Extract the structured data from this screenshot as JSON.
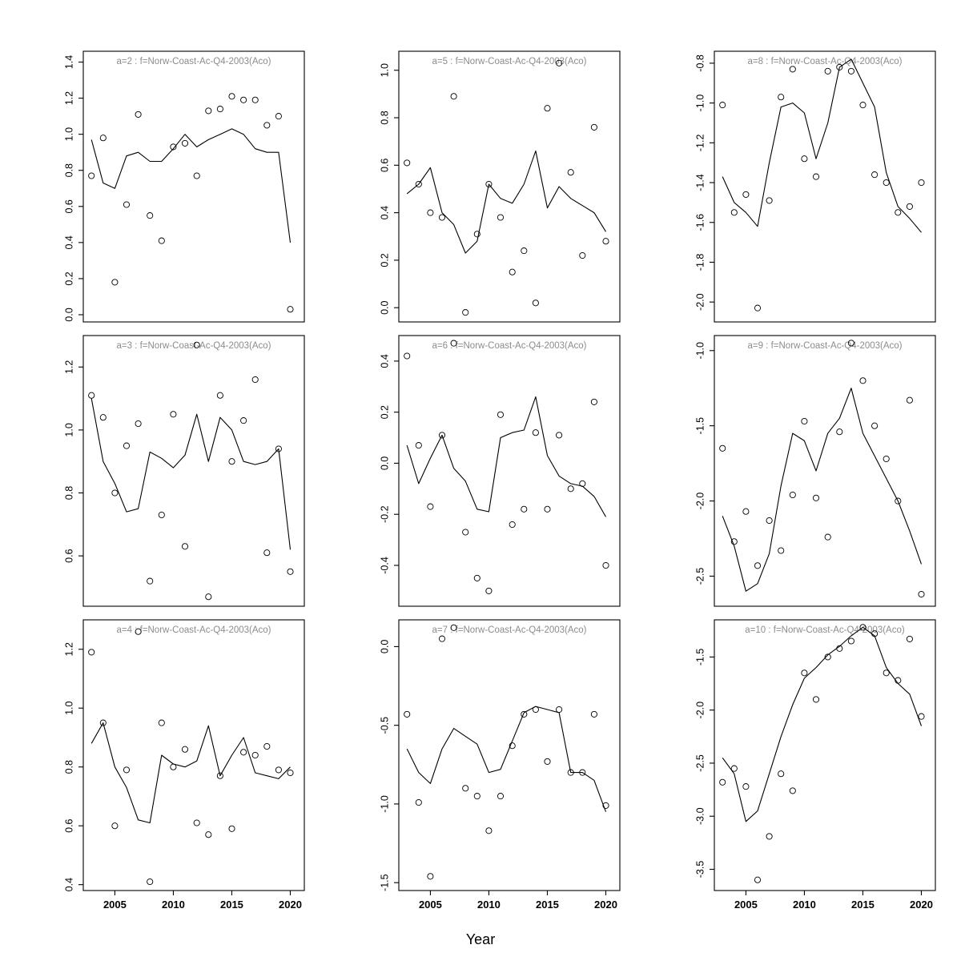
{
  "figure": {
    "xlabel": "Year",
    "background": "#ffffff",
    "line_color": "#000000",
    "point_color": "#000000",
    "title_color": "#8c8c8c",
    "axis_color": "#000000",
    "xlim": [
      2002.3,
      2021.2
    ],
    "years": [
      2003,
      2004,
      2005,
      2006,
      2007,
      2008,
      2009,
      2010,
      2011,
      2012,
      2013,
      2014,
      2015,
      2016,
      2017,
      2018,
      2019,
      2020
    ],
    "x_tick_values": [
      2005,
      2010,
      2015,
      2020
    ],
    "x_tick_labels": [
      "2005",
      "2010",
      "2015",
      "2020"
    ]
  },
  "chart_data": [
    {
      "name": "a2",
      "type": "line",
      "title": "a=2 : f=Norw-Coast-Ac-Q4-2003(Aco)",
      "ylim": [
        -0.04,
        1.46
      ],
      "yticks": [
        0.0,
        0.2,
        0.4,
        0.6,
        0.8,
        1.0,
        1.2,
        1.4
      ],
      "ytick_labels": [
        "0.0",
        "0.2",
        "0.4",
        "0.6",
        "0.8",
        "1.0",
        "1.2",
        "1.4"
      ],
      "show_x_axis": false,
      "series": [
        {
          "name": "observations",
          "style": "scatter",
          "values": [
            0.77,
            0.98,
            0.18,
            0.61,
            1.11,
            0.55,
            0.41,
            0.93,
            0.95,
            0.77,
            1.13,
            1.14,
            1.21,
            1.19,
            1.19,
            1.05,
            1.1,
            0.03
          ]
        },
        {
          "name": "fit",
          "style": "line",
          "values": [
            0.97,
            0.73,
            0.7,
            0.88,
            0.9,
            0.85,
            0.85,
            0.92,
            1.0,
            0.93,
            0.97,
            1.0,
            1.03,
            1.0,
            0.92,
            0.9,
            0.9,
            0.4
          ]
        }
      ]
    },
    {
      "name": "a5",
      "type": "line",
      "title": "a=5 : f=Norw-Coast-Ac-Q4-2003(Aco)",
      "ylim": [
        -0.06,
        1.08
      ],
      "yticks": [
        0.0,
        0.2,
        0.4,
        0.6,
        0.8,
        1.0
      ],
      "ytick_labels": [
        "0.0",
        "0.2",
        "0.4",
        "0.6",
        "0.8",
        "1.0"
      ],
      "show_x_axis": false,
      "series": [
        {
          "name": "observations",
          "style": "scatter",
          "values": [
            0.61,
            0.52,
            0.4,
            0.38,
            0.89,
            -0.02,
            0.31,
            0.52,
            0.38,
            0.15,
            0.24,
            0.02,
            0.84,
            1.03,
            0.57,
            0.22,
            0.76,
            0.28
          ]
        },
        {
          "name": "fit",
          "style": "line",
          "values": [
            0.48,
            0.52,
            0.59,
            0.4,
            0.35,
            0.23,
            0.28,
            0.52,
            0.46,
            0.44,
            0.52,
            0.66,
            0.42,
            0.51,
            0.46,
            0.43,
            0.4,
            0.32
          ]
        }
      ]
    },
    {
      "name": "a8",
      "type": "line",
      "title": "a=8 : f=Norw-Coast-Ac-Q4-2003(Aco)",
      "ylim": [
        -2.1,
        -0.74
      ],
      "yticks": [
        -2.0,
        -1.8,
        -1.6,
        -1.4,
        -1.2,
        -1.0,
        -0.8
      ],
      "ytick_labels": [
        "-2.0",
        "-1.8",
        "-1.6",
        "-1.4",
        "-1.2",
        "-1.0",
        "-0.8"
      ],
      "show_x_axis": false,
      "series": [
        {
          "name": "observations",
          "style": "scatter",
          "values": [
            -1.01,
            -1.55,
            -1.46,
            -2.03,
            -1.49,
            -0.97,
            -0.83,
            -1.28,
            -1.37,
            -0.84,
            -0.82,
            -0.84,
            -1.01,
            -1.36,
            -1.4,
            -1.55,
            -1.52,
            -1.4
          ]
        },
        {
          "name": "fit",
          "style": "line",
          "values": [
            -1.37,
            -1.5,
            -1.55,
            -1.62,
            -1.3,
            -1.02,
            -1.0,
            -1.05,
            -1.28,
            -1.1,
            -0.82,
            -0.78,
            -0.9,
            -1.02,
            -1.35,
            -1.52,
            -1.58,
            -1.65
          ]
        }
      ]
    },
    {
      "name": "a3",
      "type": "line",
      "title": "a=3 : f=Norw-Coast-Ac-Q4-2003(Aco)",
      "ylim": [
        0.44,
        1.3
      ],
      "yticks": [
        0.6,
        0.8,
        1.0,
        1.2
      ],
      "ytick_labels": [
        "0.6",
        "0.8",
        "1.0",
        "1.2"
      ],
      "show_x_axis": false,
      "series": [
        {
          "name": "observations",
          "style": "scatter",
          "values": [
            1.11,
            1.04,
            0.8,
            0.95,
            1.02,
            0.52,
            0.73,
            1.05,
            0.63,
            1.27,
            0.47,
            1.11,
            0.9,
            1.03,
            1.16,
            0.61,
            0.94,
            0.55
          ]
        },
        {
          "name": "fit",
          "style": "line",
          "values": [
            1.1,
            0.9,
            0.83,
            0.74,
            0.75,
            0.93,
            0.91,
            0.88,
            0.92,
            1.05,
            0.9,
            1.04,
            1.0,
            0.9,
            0.89,
            0.9,
            0.94,
            0.62
          ]
        }
      ]
    },
    {
      "name": "a6",
      "type": "line",
      "title": "a=6 : f=Norw-Coast-Ac-Q4-2003(Aco)",
      "ylim": [
        -0.56,
        0.5
      ],
      "yticks": [
        -0.4,
        -0.2,
        0.0,
        0.2,
        0.4
      ],
      "ytick_labels": [
        "-0.4",
        "-0.2",
        "0.0",
        "0.2",
        "0.4"
      ],
      "show_x_axis": false,
      "series": [
        {
          "name": "observations",
          "style": "scatter",
          "values": [
            0.42,
            0.07,
            -0.17,
            0.11,
            0.47,
            -0.27,
            -0.45,
            -0.5,
            0.19,
            -0.24,
            -0.18,
            0.12,
            -0.18,
            0.11,
            -0.1,
            -0.08,
            0.24,
            -0.4
          ]
        },
        {
          "name": "fit",
          "style": "line",
          "values": [
            0.07,
            -0.08,
            0.02,
            0.11,
            -0.02,
            -0.07,
            -0.18,
            -0.19,
            0.1,
            0.12,
            0.13,
            0.26,
            0.03,
            -0.05,
            -0.08,
            -0.09,
            -0.13,
            -0.21
          ]
        }
      ]
    },
    {
      "name": "a9",
      "type": "line",
      "title": "a=9 : f=Norw-Coast-Ac-Q4-2003(Aco)",
      "ylim": [
        -2.7,
        -0.9
      ],
      "yticks": [
        -2.5,
        -2.0,
        -1.5,
        -1.0
      ],
      "ytick_labels": [
        "-2.5",
        "-2.0",
        "-1.5",
        "-1.0"
      ],
      "show_x_axis": false,
      "series": [
        {
          "name": "observations",
          "style": "scatter",
          "values": [
            -1.65,
            -2.27,
            -2.07,
            -2.43,
            -2.13,
            -2.33,
            -1.96,
            -1.47,
            -1.98,
            -2.24,
            -1.54,
            -0.95,
            -1.2,
            -1.5,
            -1.72,
            -2.0,
            -1.33,
            -2.62
          ]
        },
        {
          "name": "fit",
          "style": "line",
          "values": [
            -2.1,
            -2.3,
            -2.6,
            -2.55,
            -2.35,
            -1.9,
            -1.55,
            -1.6,
            -1.8,
            -1.55,
            -1.45,
            -1.25,
            -1.55,
            -1.7,
            -1.85,
            -2.0,
            -2.2,
            -2.42
          ]
        }
      ]
    },
    {
      "name": "a4",
      "type": "line",
      "title": "a=4 : f=Norw-Coast-Ac-Q4-2003(Aco)",
      "ylim": [
        0.38,
        1.3
      ],
      "yticks": [
        0.4,
        0.6,
        0.8,
        1.0,
        1.2
      ],
      "ytick_labels": [
        "0.4",
        "0.6",
        "0.8",
        "1.0",
        "1.2"
      ],
      "show_x_axis": true,
      "series": [
        {
          "name": "observations",
          "style": "scatter",
          "values": [
            1.19,
            0.95,
            0.6,
            0.79,
            1.26,
            0.41,
            0.95,
            0.8,
            0.86,
            0.61,
            0.57,
            0.77,
            0.59,
            0.85,
            0.84,
            0.87,
            0.79,
            0.78
          ]
        },
        {
          "name": "fit",
          "style": "line",
          "values": [
            0.88,
            0.95,
            0.8,
            0.73,
            0.62,
            0.61,
            0.84,
            0.81,
            0.8,
            0.82,
            0.94,
            0.77,
            0.84,
            0.9,
            0.78,
            0.77,
            0.76,
            0.8
          ]
        }
      ]
    },
    {
      "name": "a7",
      "type": "line",
      "title": "a=7 : f=Norw-Coast-Ac-Q4-2003(Aco)",
      "ylim": [
        -1.55,
        0.17
      ],
      "yticks": [
        -1.5,
        -1.0,
        -0.5,
        0.0
      ],
      "ytick_labels": [
        "-1.5",
        "-1.0",
        "-0.5",
        "0.0"
      ],
      "show_x_axis": true,
      "series": [
        {
          "name": "observations",
          "style": "scatter",
          "values": [
            -0.43,
            -0.99,
            -1.46,
            0.05,
            0.12,
            -0.9,
            -0.95,
            -1.17,
            -0.95,
            -0.63,
            -0.43,
            -0.4,
            -0.73,
            -0.4,
            -0.8,
            -0.8,
            -0.43,
            -1.01
          ]
        },
        {
          "name": "fit",
          "style": "line",
          "values": [
            -0.65,
            -0.8,
            -0.87,
            -0.65,
            -0.52,
            -0.57,
            -0.62,
            -0.8,
            -0.78,
            -0.6,
            -0.42,
            -0.38,
            -0.4,
            -0.42,
            -0.8,
            -0.8,
            -0.85,
            -1.05
          ]
        }
      ]
    },
    {
      "name": "a10",
      "type": "line",
      "title": "a=10 : f=Norw-Coast-Ac-Q4-2003(Aco)",
      "ylim": [
        -3.7,
        -1.15
      ],
      "yticks": [
        -3.5,
        -3.0,
        -2.5,
        -2.0,
        -1.5
      ],
      "ytick_labels": [
        "-3.5",
        "-3.0",
        "-2.5",
        "-2.0",
        "-1.5"
      ],
      "show_x_axis": true,
      "series": [
        {
          "name": "observations",
          "style": "scatter",
          "values": [
            -2.68,
            -2.55,
            -2.72,
            -3.6,
            -3.19,
            -2.6,
            -2.76,
            -1.65,
            -1.9,
            -1.5,
            -1.42,
            -1.35,
            -1.22,
            -1.28,
            -1.65,
            -1.72,
            -1.33,
            -2.06
          ]
        },
        {
          "name": "fit",
          "style": "line",
          "values": [
            -2.45,
            -2.6,
            -3.05,
            -2.95,
            -2.6,
            -2.25,
            -1.95,
            -1.7,
            -1.6,
            -1.48,
            -1.4,
            -1.3,
            -1.22,
            -1.3,
            -1.6,
            -1.75,
            -1.85,
            -2.15
          ]
        }
      ]
    }
  ]
}
